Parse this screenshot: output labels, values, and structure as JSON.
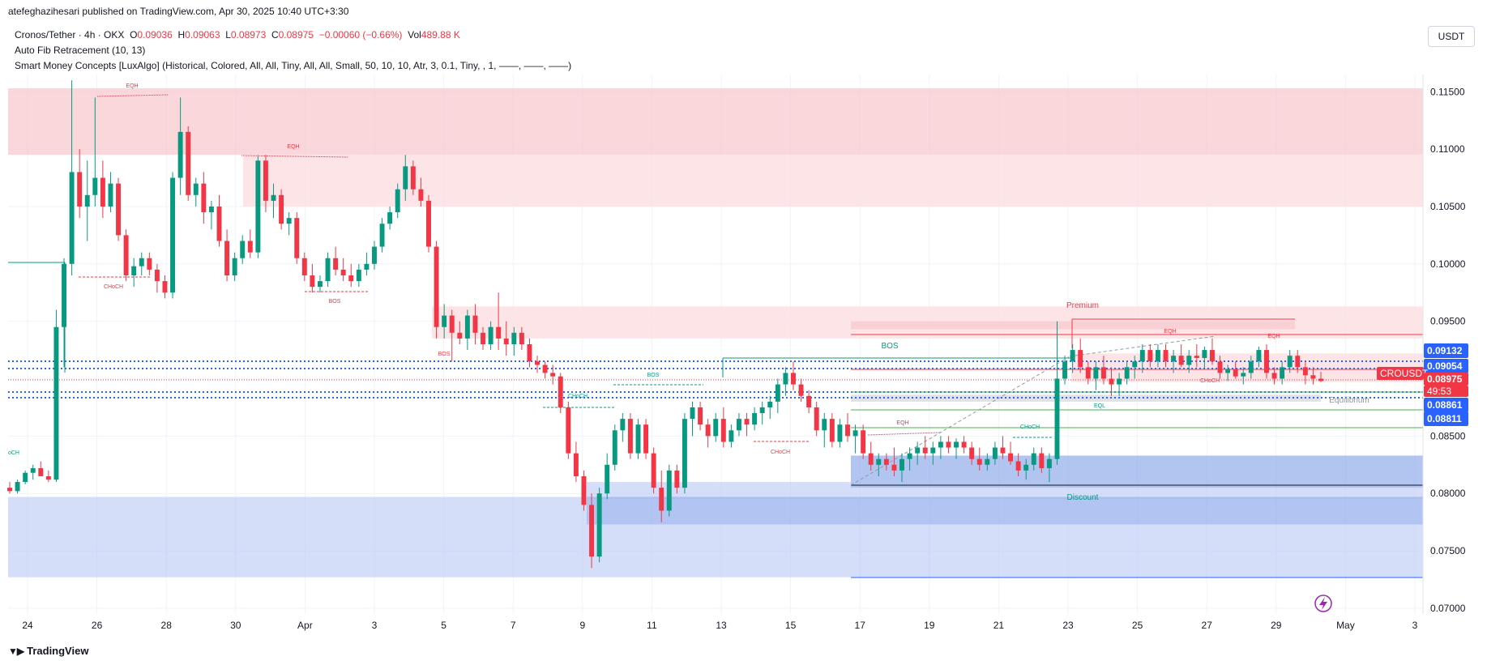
{
  "header": {
    "publisher": "atefeghazihesari published on TradingView.com, Apr 30, 2025 10:40 UTC+3:30"
  },
  "legend": {
    "symbol": "Cronos/Tether · 4h · OKX",
    "ohlc": {
      "o_label": "O",
      "o": "0.09036",
      "h_label": "H",
      "h": "0.09063",
      "l_label": "L",
      "l": "0.08973",
      "c_label": "C",
      "c": "0.08975",
      "change": "−0.00060 (−0.66%)",
      "vol_label": "Vol",
      "vol": "489.88 K"
    },
    "indicator1": "Auto Fib Retracement (10, 13)",
    "indicator2": "Smart Money Concepts [LuxAlgo] (Historical, Colored, All, All, Tiny, All, All, Small, 50, 10, 10, Atr, 3, 0.1, Tiny, , 1, ——, ——, ——)"
  },
  "currency_button": "USDT",
  "branding": "TradingView",
  "colors": {
    "bull": "#089981",
    "bear": "#f23645",
    "premium_zone": "#f7c9cd",
    "discount_zone": "#b3c3f2",
    "equilibrium_zone": "#d8dbe2",
    "blue_dotted": "#2962ff"
  },
  "chart_data": {
    "type": "candlestick",
    "symbol": "CROUSDT",
    "timeframe": "4h",
    "y_axis": {
      "min": 0.0695,
      "max": 0.1165,
      "ticks": [
        "0.11500",
        "0.11000",
        "0.10500",
        "0.10000",
        "0.09500",
        "0.09000",
        "0.08500",
        "0.08000",
        "0.07500",
        "0.07000"
      ]
    },
    "x_axis": {
      "ticks": [
        "24",
        "26",
        "28",
        "30",
        "Apr",
        "3",
        "5",
        "7",
        "9",
        "11",
        "13",
        "15",
        "17",
        "19",
        "21",
        "23",
        "25",
        "27",
        "29",
        "May",
        "3"
      ]
    },
    "price_labels": [
      {
        "value": "0.09132",
        "color": "#2962ff"
      },
      {
        "value": "0.09054",
        "color": "#2962ff"
      },
      {
        "value": "CROUSDT",
        "color": "#f23645"
      },
      {
        "value": "0.08975",
        "color": "#f23645"
      },
      {
        "value": "49:53",
        "color": "#f23645"
      },
      {
        "value": "0.08861",
        "color": "#2962ff"
      },
      {
        "value": "0.08811",
        "color": "#2962ff"
      }
    ],
    "candles": [
      [
        0.0805,
        0.081,
        0.08,
        0.0802
      ],
      [
        0.0802,
        0.0812,
        0.08,
        0.081
      ],
      [
        0.081,
        0.082,
        0.0808,
        0.0818
      ],
      [
        0.0818,
        0.0825,
        0.0812,
        0.0822
      ],
      [
        0.0822,
        0.0828,
        0.0818,
        0.0815
      ],
      [
        0.0815,
        0.082,
        0.081,
        0.0812
      ],
      [
        0.0812,
        0.096,
        0.081,
        0.0945
      ],
      [
        0.0945,
        0.1005,
        0.091,
        0.1
      ],
      [
        0.1,
        0.116,
        0.099,
        0.108
      ],
      [
        0.108,
        0.11,
        0.104,
        0.105
      ],
      [
        0.105,
        0.109,
        0.102,
        0.106
      ],
      [
        0.106,
        0.1145,
        0.105,
        0.1075
      ],
      [
        0.1075,
        0.109,
        0.104,
        0.105
      ],
      [
        0.105,
        0.108,
        0.1045,
        0.107
      ],
      [
        0.107,
        0.1075,
        0.102,
        0.1025
      ],
      [
        0.1025,
        0.103,
        0.0985,
        0.099
      ],
      [
        0.099,
        0.1005,
        0.098,
        0.0998
      ],
      [
        0.0998,
        0.101,
        0.099,
        0.1005
      ],
      [
        0.1005,
        0.101,
        0.099,
        0.0995
      ],
      [
        0.0995,
        0.1,
        0.0975,
        0.0985
      ],
      [
        0.0985,
        0.099,
        0.097,
        0.0975
      ],
      [
        0.0975,
        0.108,
        0.097,
        0.1075
      ],
      [
        0.1075,
        0.1145,
        0.106,
        0.1115
      ],
      [
        0.1115,
        0.112,
        0.1055,
        0.106
      ],
      [
        0.106,
        0.1075,
        0.105,
        0.107
      ],
      [
        0.107,
        0.108,
        0.1035,
        0.1045
      ],
      [
        0.1045,
        0.1055,
        0.103,
        0.105
      ],
      [
        0.105,
        0.106,
        0.1015,
        0.102
      ],
      [
        0.102,
        0.103,
        0.0985,
        0.099
      ],
      [
        0.099,
        0.101,
        0.0985,
        0.1005
      ],
      [
        0.1005,
        0.1025,
        0.1,
        0.102
      ],
      [
        0.102,
        0.103,
        0.1005,
        0.101
      ],
      [
        0.101,
        0.1095,
        0.1005,
        0.109
      ],
      [
        0.109,
        0.1095,
        0.1045,
        0.1055
      ],
      [
        0.1055,
        0.107,
        0.104,
        0.106
      ],
      [
        0.106,
        0.1065,
        0.103,
        0.1035
      ],
      [
        0.1035,
        0.1045,
        0.1025,
        0.104
      ],
      [
        0.104,
        0.1045,
        0.1,
        0.1005
      ],
      [
        0.1005,
        0.101,
        0.0985,
        0.099
      ],
      [
        0.099,
        0.1,
        0.0975,
        0.098
      ],
      [
        0.098,
        0.099,
        0.0975,
        0.0985
      ],
      [
        0.0985,
        0.101,
        0.098,
        0.1005
      ],
      [
        0.1005,
        0.1015,
        0.099,
        0.0995
      ],
      [
        0.0995,
        0.1005,
        0.0985,
        0.099
      ],
      [
        0.099,
        0.1,
        0.098,
        0.0985
      ],
      [
        0.0985,
        0.1,
        0.098,
        0.0995
      ],
      [
        0.0995,
        0.101,
        0.099,
        0.1
      ],
      [
        0.1,
        0.102,
        0.0995,
        0.1015
      ],
      [
        0.1015,
        0.104,
        0.101,
        0.1035
      ],
      [
        0.1035,
        0.105,
        0.103,
        0.1045
      ],
      [
        0.1045,
        0.107,
        0.104,
        0.1065
      ],
      [
        0.1065,
        0.1095,
        0.1055,
        0.1085
      ],
      [
        0.1085,
        0.109,
        0.106,
        0.1065
      ],
      [
        0.1065,
        0.1075,
        0.105,
        0.1055
      ],
      [
        0.1055,
        0.106,
        0.101,
        0.1015
      ],
      [
        0.1015,
        0.102,
        0.0935,
        0.0945
      ],
      [
        0.0945,
        0.0965,
        0.0935,
        0.0955
      ],
      [
        0.0955,
        0.096,
        0.0915,
        0.094
      ],
      [
        0.094,
        0.095,
        0.093,
        0.0935
      ],
      [
        0.0935,
        0.096,
        0.0925,
        0.0955
      ],
      [
        0.0955,
        0.0965,
        0.093,
        0.094
      ],
      [
        0.094,
        0.0945,
        0.0925,
        0.093
      ],
      [
        0.093,
        0.095,
        0.0925,
        0.0945
      ],
      [
        0.0945,
        0.0975,
        0.0925,
        0.0935
      ],
      [
        0.0935,
        0.095,
        0.092,
        0.093
      ],
      [
        0.093,
        0.0945,
        0.092,
        0.094
      ],
      [
        0.094,
        0.0945,
        0.0925,
        0.093
      ],
      [
        0.093,
        0.0935,
        0.091,
        0.0915
      ],
      [
        0.0915,
        0.092,
        0.0905,
        0.0912
      ],
      [
        0.0912,
        0.0915,
        0.09,
        0.0905
      ],
      [
        0.0905,
        0.0912,
        0.0895,
        0.0902
      ],
      [
        0.0902,
        0.0905,
        0.087,
        0.0875
      ],
      [
        0.0875,
        0.088,
        0.083,
        0.0835
      ],
      [
        0.0835,
        0.0845,
        0.081,
        0.0815
      ],
      [
        0.0815,
        0.082,
        0.0785,
        0.079
      ],
      [
        0.079,
        0.08,
        0.0735,
        0.0745
      ],
      [
        0.0745,
        0.0805,
        0.074,
        0.08
      ],
      [
        0.08,
        0.0835,
        0.0795,
        0.0825
      ],
      [
        0.0825,
        0.086,
        0.082,
        0.0855
      ],
      [
        0.0855,
        0.087,
        0.0845,
        0.0865
      ],
      [
        0.0865,
        0.087,
        0.083,
        0.0835
      ],
      [
        0.0835,
        0.0865,
        0.083,
        0.086
      ],
      [
        0.086,
        0.0865,
        0.083,
        0.0835
      ],
      [
        0.0835,
        0.084,
        0.08,
        0.0805
      ],
      [
        0.0805,
        0.082,
        0.0775,
        0.0785
      ],
      [
        0.0785,
        0.0825,
        0.078,
        0.082
      ],
      [
        0.082,
        0.0825,
        0.08,
        0.0805
      ],
      [
        0.0805,
        0.087,
        0.08,
        0.0865
      ],
      [
        0.0865,
        0.088,
        0.085,
        0.0875
      ],
      [
        0.0875,
        0.088,
        0.0855,
        0.086
      ],
      [
        0.086,
        0.0865,
        0.084,
        0.085
      ],
      [
        0.085,
        0.087,
        0.0845,
        0.0865
      ],
      [
        0.0865,
        0.0875,
        0.084,
        0.0845
      ],
      [
        0.0845,
        0.086,
        0.084,
        0.0855
      ],
      [
        0.0855,
        0.087,
        0.085,
        0.0865
      ],
      [
        0.0865,
        0.087,
        0.085,
        0.086
      ],
      [
        0.086,
        0.0875,
        0.0855,
        0.087
      ],
      [
        0.087,
        0.088,
        0.086,
        0.0875
      ],
      [
        0.0875,
        0.0885,
        0.0865,
        0.088
      ],
      [
        0.088,
        0.09,
        0.087,
        0.0895
      ],
      [
        0.0895,
        0.091,
        0.0885,
        0.0905
      ],
      [
        0.0905,
        0.0915,
        0.089,
        0.0895
      ],
      [
        0.0895,
        0.09,
        0.088,
        0.0885
      ],
      [
        0.0885,
        0.089,
        0.087,
        0.0875
      ],
      [
        0.0875,
        0.088,
        0.085,
        0.0855
      ],
      [
        0.0855,
        0.087,
        0.084,
        0.0865
      ],
      [
        0.0865,
        0.087,
        0.084,
        0.0845
      ],
      [
        0.0845,
        0.0865,
        0.084,
        0.086
      ],
      [
        0.086,
        0.087,
        0.0845,
        0.085
      ],
      [
        0.085,
        0.086,
        0.0835,
        0.0855
      ],
      [
        0.0855,
        0.086,
        0.083,
        0.0835
      ],
      [
        0.0835,
        0.0845,
        0.082,
        0.0825
      ],
      [
        0.0825,
        0.0835,
        0.0815,
        0.083
      ],
      [
        0.083,
        0.0835,
        0.082,
        0.0825
      ],
      [
        0.0825,
        0.084,
        0.0815,
        0.082
      ],
      [
        0.082,
        0.0835,
        0.081,
        0.083
      ],
      [
        0.083,
        0.084,
        0.082,
        0.0835
      ],
      [
        0.0835,
        0.0845,
        0.0825,
        0.084
      ],
      [
        0.084,
        0.085,
        0.083,
        0.0835
      ],
      [
        0.0835,
        0.0845,
        0.0825,
        0.084
      ],
      [
        0.084,
        0.085,
        0.083,
        0.0845
      ],
      [
        0.0845,
        0.085,
        0.0835,
        0.084
      ],
      [
        0.084,
        0.0848,
        0.083,
        0.0845
      ],
      [
        0.0845,
        0.085,
        0.0835,
        0.084
      ],
      [
        0.084,
        0.0845,
        0.0825,
        0.083
      ],
      [
        0.083,
        0.084,
        0.082,
        0.0825
      ],
      [
        0.0825,
        0.0835,
        0.082,
        0.083
      ],
      [
        0.083,
        0.0845,
        0.0825,
        0.084
      ],
      [
        0.084,
        0.085,
        0.083,
        0.0835
      ],
      [
        0.0835,
        0.0845,
        0.0825,
        0.0828
      ],
      [
        0.0828,
        0.0835,
        0.0815,
        0.082
      ],
      [
        0.082,
        0.083,
        0.0812,
        0.0825
      ],
      [
        0.0825,
        0.084,
        0.082,
        0.0835
      ],
      [
        0.0835,
        0.084,
        0.0818,
        0.0822
      ],
      [
        0.0822,
        0.0835,
        0.081,
        0.083
      ],
      [
        0.083,
        0.095,
        0.0825,
        0.09
      ],
      [
        0.09,
        0.092,
        0.0895,
        0.0915
      ],
      [
        0.0915,
        0.093,
        0.0905,
        0.0925
      ],
      [
        0.0925,
        0.0935,
        0.0905,
        0.091
      ],
      [
        0.091,
        0.0915,
        0.0895,
        0.09
      ],
      [
        0.09,
        0.0915,
        0.089,
        0.091
      ],
      [
        0.091,
        0.092,
        0.0895,
        0.09
      ],
      [
        0.09,
        0.091,
        0.0885,
        0.0895
      ],
      [
        0.0895,
        0.0905,
        0.0885,
        0.09
      ],
      [
        0.09,
        0.0915,
        0.0895,
        0.091
      ],
      [
        0.091,
        0.092,
        0.09,
        0.0915
      ],
      [
        0.0915,
        0.093,
        0.0905,
        0.0925
      ],
      [
        0.0925,
        0.093,
        0.091,
        0.0915
      ],
      [
        0.0915,
        0.093,
        0.091,
        0.0925
      ],
      [
        0.0925,
        0.093,
        0.091,
        0.0915
      ],
      [
        0.0915,
        0.0925,
        0.0905,
        0.092
      ],
      [
        0.092,
        0.093,
        0.091,
        0.0912
      ],
      [
        0.0912,
        0.0925,
        0.0905,
        0.092
      ],
      [
        0.092,
        0.093,
        0.091,
        0.0918
      ],
      [
        0.0918,
        0.0928,
        0.0908,
        0.0925
      ],
      [
        0.0925,
        0.0935,
        0.0912,
        0.0915
      ],
      [
        0.0915,
        0.092,
        0.09,
        0.0905
      ],
      [
        0.0905,
        0.0912,
        0.0898,
        0.0908
      ],
      [
        0.0908,
        0.0915,
        0.09,
        0.0902
      ],
      [
        0.0902,
        0.091,
        0.0895,
        0.0905
      ],
      [
        0.0905,
        0.092,
        0.09,
        0.0915
      ],
      [
        0.0915,
        0.0928,
        0.091,
        0.0925
      ],
      [
        0.0925,
        0.093,
        0.09,
        0.0905
      ],
      [
        0.0905,
        0.091,
        0.0895,
        0.09
      ],
      [
        0.09,
        0.0915,
        0.0895,
        0.091
      ],
      [
        0.091,
        0.0925,
        0.0905,
        0.092
      ],
      [
        0.092,
        0.0925,
        0.0905,
        0.091
      ],
      [
        0.091,
        0.0915,
        0.0895,
        0.0903
      ],
      [
        0.0903,
        0.091,
        0.0895,
        0.09
      ],
      [
        0.09,
        0.0906,
        0.0897,
        0.0898
      ]
    ],
    "zones": [
      {
        "name": "top-premium-zone",
        "kind": "premium",
        "y_top": 0.1153,
        "y_bottom": 0.1095
      },
      {
        "name": "upper-supply-zone",
        "kind": "premium-light",
        "y_top": 0.1095,
        "y_bottom": 0.105
      },
      {
        "name": "mid-supply-zone",
        "kind": "premium-light",
        "y_top": 0.0963,
        "y_bottom": 0.0935
      },
      {
        "name": "premium-box",
        "kind": "premium",
        "y_top": 0.095,
        "y_bottom": 0.0943
      },
      {
        "name": "right-supply-zone",
        "kind": "premium-light",
        "y_top": 0.0922,
        "y_bottom": 0.0897
      },
      {
        "name": "equilibrium-box",
        "kind": "equilibrium",
        "y_top": 0.0886,
        "y_bottom": 0.088
      },
      {
        "name": "discount-box-upper",
        "kind": "discount",
        "y_top": 0.0833,
        "y_bottom": 0.0805
      },
      {
        "name": "demand-zone-light",
        "kind": "discount-light",
        "y_top": 0.081,
        "y_bottom": 0.0795
      },
      {
        "name": "discount-box-lower",
        "kind": "discount",
        "y_top": 0.0797,
        "y_bottom": 0.0773
      },
      {
        "name": "bottom-discount-zone",
        "kind": "discount-light",
        "y_top": 0.0797,
        "y_bottom": 0.0727
      }
    ],
    "annotations": [
      {
        "text": "EQH",
        "color": "#f23645"
      },
      {
        "text": "EQH",
        "color": "#f23645"
      },
      {
        "text": "CHoCH",
        "color": "#f23645"
      },
      {
        "text": "BOS",
        "color": "#f23645"
      },
      {
        "text": "BOS",
        "color": "#f23645"
      },
      {
        "text": "CHoCH",
        "color": "#089981"
      },
      {
        "text": "BOS",
        "color": "#089981"
      },
      {
        "text": "BOS",
        "color": "#089981"
      },
      {
        "text": "CHoCH",
        "color": "#f23645"
      },
      {
        "text": "EQH",
        "color": "#f23645"
      },
      {
        "text": "CHoCH",
        "color": "#089981"
      },
      {
        "text": "Premium",
        "color": "#f23645"
      },
      {
        "text": "EQH",
        "color": "#f23645"
      },
      {
        "text": "EQH",
        "color": "#f23645"
      },
      {
        "text": "CHoCH",
        "color": "#f23645"
      },
      {
        "text": "EQL",
        "color": "#089981"
      },
      {
        "text": "Equilibrium",
        "color": "#9598a1"
      },
      {
        "text": "Discount",
        "color": "#089981"
      },
      {
        "text": "oCH",
        "color": "#089981"
      }
    ]
  }
}
